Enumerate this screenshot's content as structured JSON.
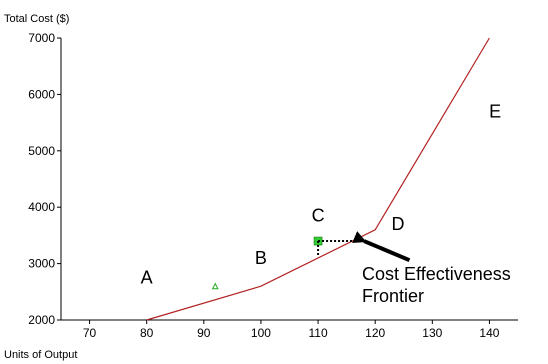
{
  "chart_data": {
    "type": "line",
    "ylabel": "Total Cost ($)",
    "xlabel": "Units of Output",
    "xlim": [
      65,
      145
    ],
    "ylim": [
      2000,
      7000
    ],
    "x_ticks": [
      70,
      80,
      90,
      100,
      110,
      120,
      130,
      140
    ],
    "y_ticks": [
      2000,
      3000,
      4000,
      5000,
      6000,
      7000
    ],
    "line_color": "#b22222",
    "series": [
      {
        "points": [
          {
            "x": 80,
            "y": 2000
          },
          {
            "x": 100,
            "y": 2600
          },
          {
            "x": 120,
            "y": 3600
          },
          {
            "x": 140,
            "y": 7000
          }
        ]
      }
    ],
    "markers": [
      {
        "x": 92,
        "y": 2600,
        "shape": "triangle",
        "color": "#22aa22"
      },
      {
        "x": 110,
        "y": 3400,
        "shape": "square",
        "color": "#33cc33"
      }
    ],
    "region_labels": [
      {
        "text": "A",
        "x": 80,
        "y": 2750
      },
      {
        "text": "B",
        "x": 100,
        "y": 3100
      },
      {
        "text": "C",
        "x": 110,
        "y": 3850
      },
      {
        "text": "D",
        "x": 124,
        "y": 3700
      },
      {
        "text": "E",
        "x": 141,
        "y": 5700
      }
    ],
    "annotation": {
      "lines": [
        "Cost Effectiveness",
        "Frontier"
      ],
      "arrow_target": {
        "x": 117,
        "y": 3400
      },
      "arrow_tail": {
        "x": 126,
        "y": 3060
      }
    }
  }
}
